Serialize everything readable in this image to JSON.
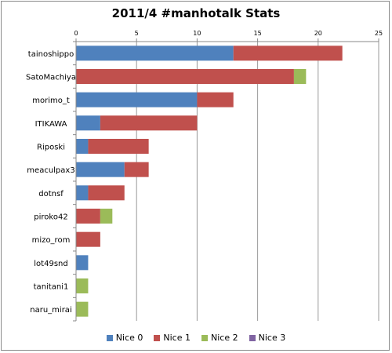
{
  "chart_data": {
    "type": "bar",
    "orientation": "horizontal",
    "stacked": true,
    "title": "2011/4 #manhotalk Stats",
    "xlabel": "",
    "ylabel": "",
    "xlim": [
      0,
      25
    ],
    "x_ticks": [
      0,
      5,
      10,
      15,
      20,
      25
    ],
    "x_tick_labels": [
      "0",
      "5",
      "10",
      "15",
      "20",
      "25"
    ],
    "x_axis_position": "top",
    "grid": "vertical",
    "legend_position": "bottom",
    "categories": [
      "tainoshippo",
      "SatoMachiya",
      "morimo_t",
      "ITIKAWA",
      "Riposki",
      "meaculpax3",
      "dotnsf",
      "piroko42",
      "mizo_rom",
      "lot49snd",
      "tanitani1",
      "naru_mirai"
    ],
    "series": [
      {
        "name": "Nice 0",
        "color": "#4f81bd",
        "values": [
          13,
          0,
          10,
          2,
          1,
          4,
          1,
          0,
          0,
          1,
          0,
          0
        ]
      },
      {
        "name": "Nice 1",
        "color": "#c0504d",
        "values": [
          9,
          18,
          3,
          8,
          5,
          2,
          3,
          2,
          2,
          0,
          0,
          0
        ]
      },
      {
        "name": "Nice 2",
        "color": "#9bbb59",
        "values": [
          0,
          1,
          0,
          0,
          0,
          0,
          0,
          1,
          0,
          0,
          1,
          1
        ]
      },
      {
        "name": "Nice 3",
        "color": "#8064a2",
        "values": [
          0,
          0,
          0,
          0,
          0,
          0,
          0,
          0,
          0,
          0,
          0,
          0
        ]
      }
    ]
  }
}
